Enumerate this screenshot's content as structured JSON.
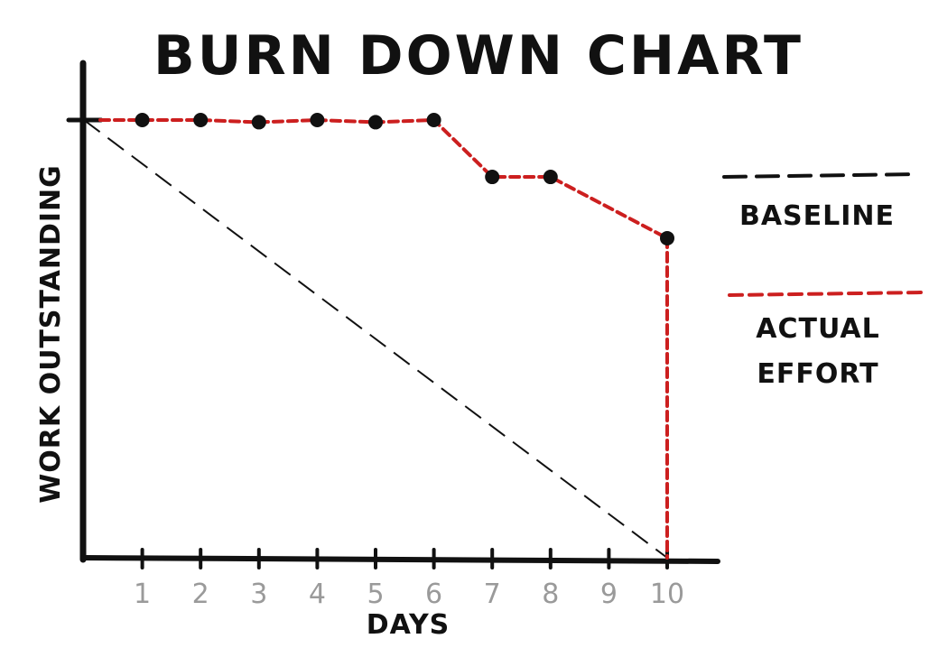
{
  "chart_data": {
    "type": "line",
    "title": "BURN DOWN CHART",
    "xlabel": "DAYS",
    "ylabel": "WORK OUTSTANDING",
    "x": [
      1,
      2,
      3,
      4,
      5,
      6,
      7,
      8,
      9,
      10
    ],
    "xlim": [
      0,
      10
    ],
    "ylim": [
      0,
      100
    ],
    "grid": false,
    "legend_position": "right",
    "series": [
      {
        "name": "BASELINE",
        "color": "#111111",
        "style": "dashed",
        "points": [
          [
            0,
            100
          ],
          [
            10,
            0
          ]
        ]
      },
      {
        "name": "ACTUAL EFFORT",
        "color": "#cc1f1f",
        "style": "dashed",
        "marker_color": "#111111",
        "points": [
          [
            1,
            100
          ],
          [
            2,
            100
          ],
          [
            3,
            99.5
          ],
          [
            4,
            100
          ],
          [
            5,
            99.5
          ],
          [
            6,
            100
          ],
          [
            7,
            87
          ],
          [
            8,
            87
          ],
          [
            10,
            73
          ]
        ],
        "drop_to": [
          10,
          0
        ]
      }
    ],
    "legend": [
      {
        "label_lines": [
          "BASELINE"
        ],
        "series": 0
      },
      {
        "label_lines": [
          "ACTUAL",
          "EFFORT"
        ],
        "series": 1
      }
    ]
  }
}
